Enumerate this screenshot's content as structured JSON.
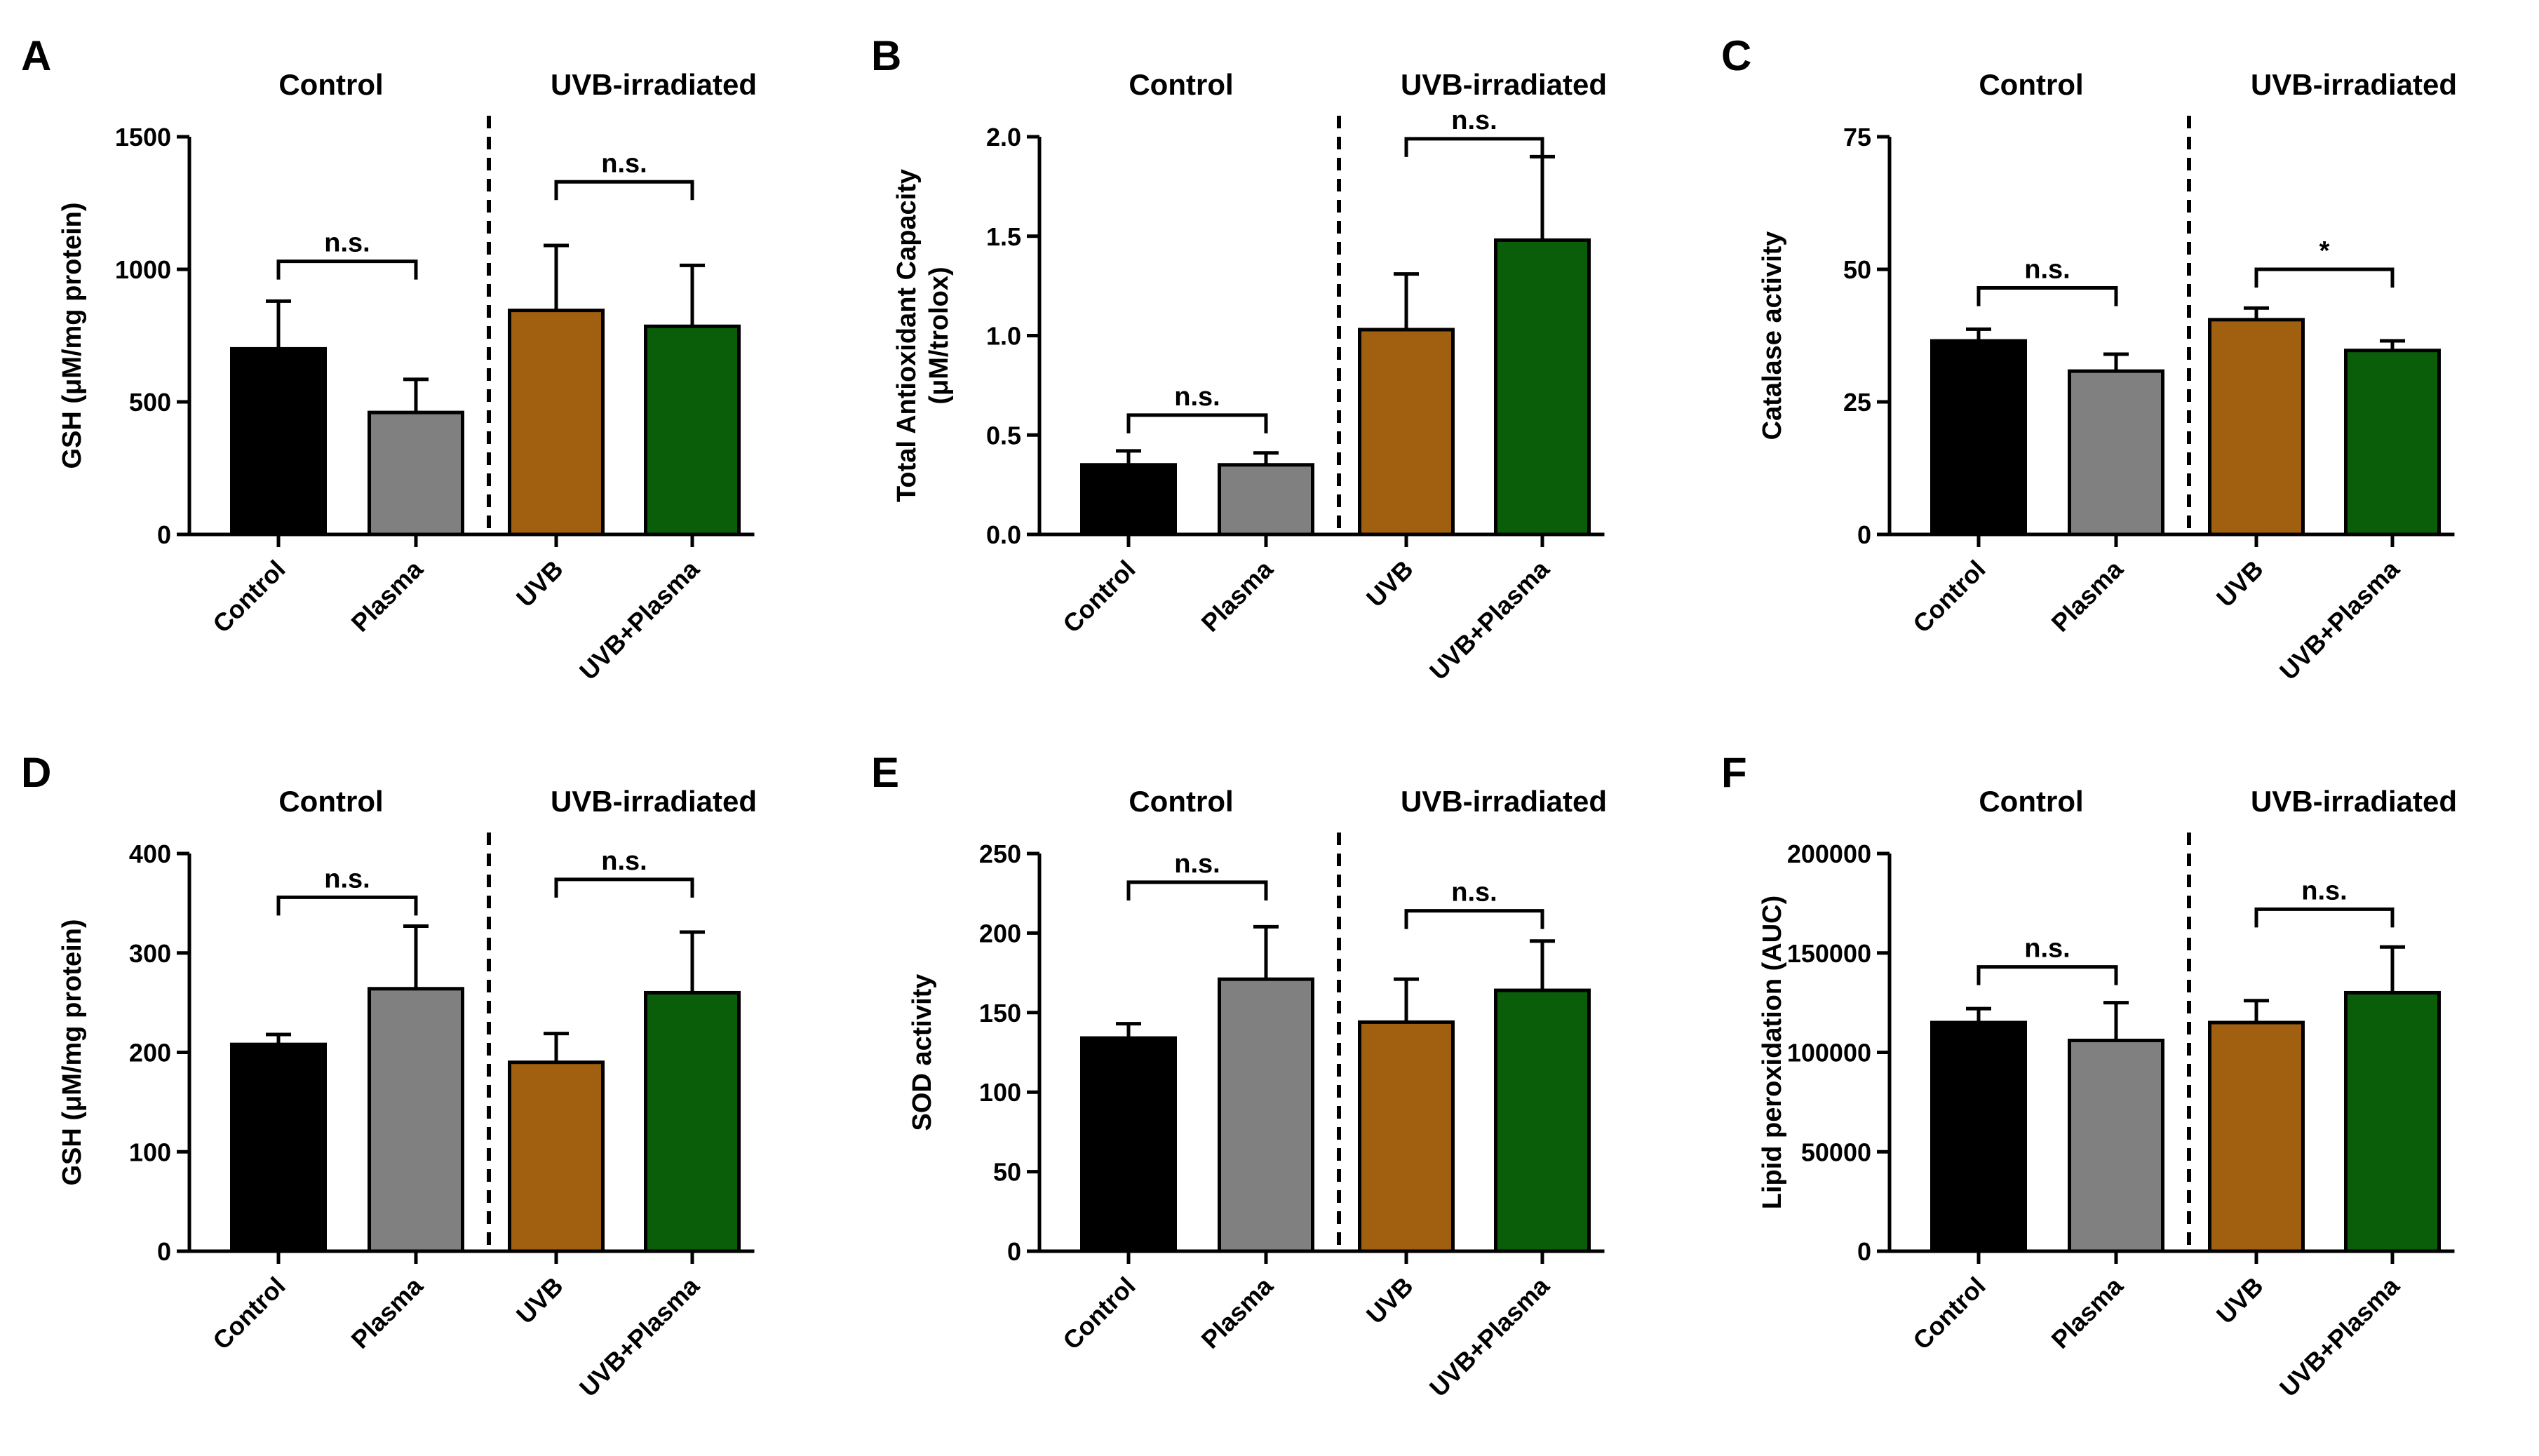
{
  "figure": {
    "group_labels": [
      "Control",
      "UVB-irradiated"
    ],
    "bar_colors": [
      "#000000",
      "#808080",
      "#A0600F",
      "#0A5E0A"
    ]
  },
  "chart_data": [
    {
      "panel": "A",
      "type": "bar",
      "categories": [
        "Control",
        "Plasma",
        "UVB",
        "UVB+Plasma"
      ],
      "values": [
        700,
        460,
        845,
        785
      ],
      "errors": [
        180,
        125,
        245,
        230
      ],
      "ylabel": "GSH (μM/mg protein)",
      "ylim": [
        0,
        1500
      ],
      "yticks": [
        0,
        500,
        1000,
        1500
      ],
      "ticklabels": [
        "0",
        "500",
        "1000",
        "1500"
      ],
      "comparisons": [
        {
          "pair": [
            0,
            1
          ],
          "label": "n.s.",
          "y": 1030
        },
        {
          "pair": [
            2,
            3
          ],
          "label": "n.s.",
          "y": 1330
        }
      ]
    },
    {
      "panel": "B",
      "type": "bar",
      "categories": [
        "Control",
        "Plasma",
        "UVB",
        "UVB+Plasma"
      ],
      "values": [
        0.35,
        0.35,
        1.03,
        1.48
      ],
      "errors": [
        0.07,
        0.06,
        0.28,
        0.42
      ],
      "ylabel": "Total Antioxidant Capacity",
      "ylabel2": "(μM/trolox)",
      "ylim": [
        0,
        2.0
      ],
      "yticks": [
        0,
        0.5,
        1.0,
        1.5,
        2.0
      ],
      "ticklabels": [
        "0.0",
        "0.5",
        "1.0",
        "1.5",
        "2.0"
      ],
      "comparisons": [
        {
          "pair": [
            0,
            1
          ],
          "label": "n.s.",
          "y": 0.6
        },
        {
          "pair": [
            2,
            3
          ],
          "label": "n.s.",
          "y": 1.99
        }
      ]
    },
    {
      "panel": "C",
      "type": "bar",
      "categories": [
        "Control",
        "Plasma",
        "UVB",
        "UVB+Plasma"
      ],
      "values": [
        36.5,
        30.8,
        40.5,
        34.7
      ],
      "errors": [
        2.2,
        3.2,
        2.2,
        1.8
      ],
      "ylabel": "Catalase activity",
      "ylim": [
        0,
        75
      ],
      "yticks": [
        0,
        25,
        50,
        75
      ],
      "ticklabels": [
        "0",
        "25",
        "50",
        "75"
      ],
      "comparisons": [
        {
          "pair": [
            0,
            1
          ],
          "label": "n.s.",
          "y": 46.5
        },
        {
          "pair": [
            2,
            3
          ],
          "label": "*",
          "y": 50
        }
      ]
    },
    {
      "panel": "D",
      "type": "bar",
      "categories": [
        "Control",
        "Plasma",
        "UVB",
        "UVB+Plasma"
      ],
      "values": [
        208,
        264,
        190,
        260
      ],
      "errors": [
        10,
        63,
        29,
        61
      ],
      "ylabel": "GSH (μM/mg protein)",
      "ylim": [
        0,
        400
      ],
      "yticks": [
        0,
        100,
        200,
        300,
        400
      ],
      "ticklabels": [
        "0",
        "100",
        "200",
        "300",
        "400"
      ],
      "comparisons": [
        {
          "pair": [
            0,
            1
          ],
          "label": "n.s.",
          "y": 356
        },
        {
          "pair": [
            2,
            3
          ],
          "label": "n.s.",
          "y": 374
        }
      ]
    },
    {
      "panel": "E",
      "type": "bar",
      "categories": [
        "Control",
        "Plasma",
        "UVB",
        "UVB+Plasma"
      ],
      "values": [
        134,
        171,
        144,
        164
      ],
      "errors": [
        9,
        33,
        27,
        31
      ],
      "ylabel": "SOD activity",
      "ylim": [
        0,
        250
      ],
      "yticks": [
        0,
        50,
        100,
        150,
        200,
        250
      ],
      "ticklabels": [
        "0",
        "50",
        "100",
        "150",
        "200",
        "250"
      ],
      "comparisons": [
        {
          "pair": [
            0,
            1
          ],
          "label": "n.s.",
          "y": 232
        },
        {
          "pair": [
            2,
            3
          ],
          "label": "n.s.",
          "y": 214
        }
      ]
    },
    {
      "panel": "F",
      "type": "bar",
      "categories": [
        "Control",
        "Plasma",
        "UVB",
        "UVB+Plasma"
      ],
      "values": [
        115000,
        106000,
        115000,
        130000
      ],
      "errors": [
        7000,
        19000,
        11000,
        23000
      ],
      "ylabel": "Lipid peroxidation (AUC)",
      "ylim": [
        0,
        200000
      ],
      "yticks": [
        0,
        50000,
        100000,
        150000,
        200000
      ],
      "ticklabels": [
        "0",
        "50000",
        "100000",
        "150000",
        "200000"
      ],
      "comparisons": [
        {
          "pair": [
            0,
            1
          ],
          "label": "n.s.",
          "y": 143000
        },
        {
          "pair": [
            2,
            3
          ],
          "label": "n.s.",
          "y": 172000
        }
      ]
    }
  ]
}
